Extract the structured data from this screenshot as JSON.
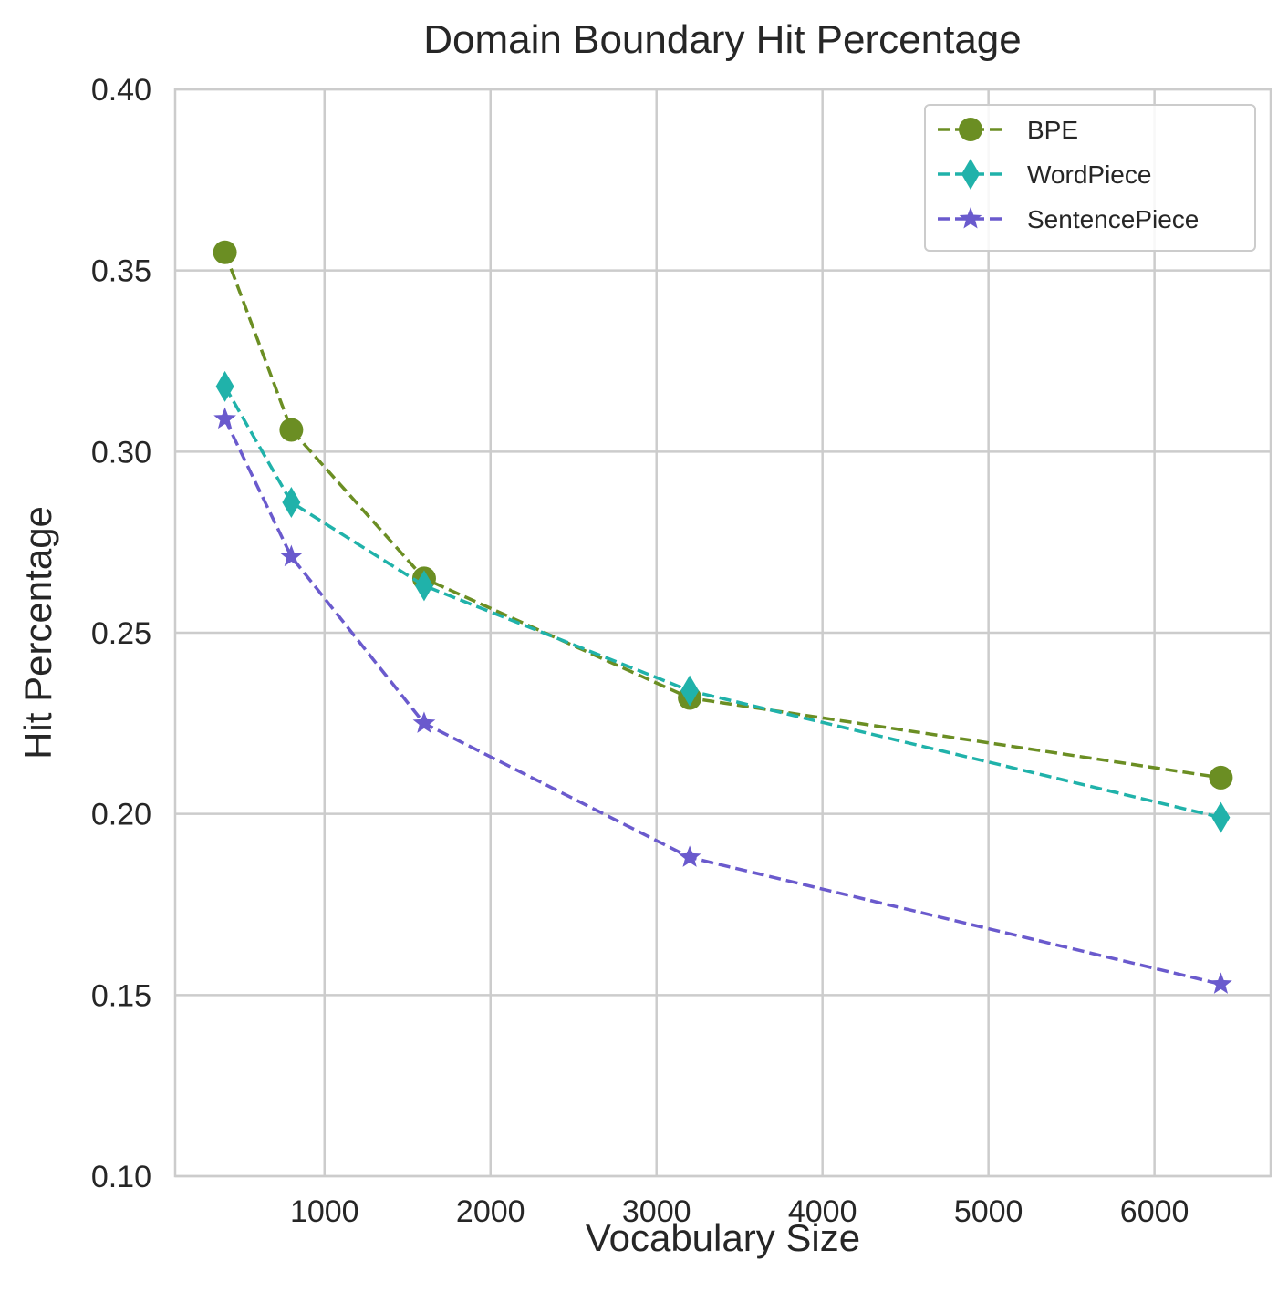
{
  "chart_data": {
    "type": "line",
    "title": "Domain Boundary Hit Percentage",
    "xlabel": "Vocabulary Size",
    "ylabel": "Hit Percentage",
    "xlim": [
      100,
      6700
    ],
    "ylim": [
      0.1,
      0.4
    ],
    "xticks": [
      1000,
      2000,
      3000,
      4000,
      5000,
      6000
    ],
    "xtick_labels": [
      "1000",
      "2000",
      "3000",
      "4000",
      "5000",
      "6000"
    ],
    "yticks": [
      0.1,
      0.15,
      0.2,
      0.25,
      0.3,
      0.35,
      0.4
    ],
    "ytick_labels": [
      "0.10",
      "0.15",
      "0.20",
      "0.25",
      "0.30",
      "0.35",
      "0.40"
    ],
    "grid": true,
    "legend_position": "top-right",
    "x": [
      400,
      800,
      1600,
      3200,
      6400
    ],
    "series": [
      {
        "name": "BPE",
        "color": "#6b8e23",
        "marker": "circle",
        "linestyle": "dashed",
        "values": [
          0.355,
          0.306,
          0.265,
          0.232,
          0.21
        ]
      },
      {
        "name": "WordPiece",
        "color": "#20b2aa",
        "marker": "diamond",
        "linestyle": "dashed",
        "values": [
          0.318,
          0.286,
          0.263,
          0.234,
          0.199
        ]
      },
      {
        "name": "SentencePiece",
        "color": "#6a5acd",
        "marker": "star",
        "linestyle": "dashed",
        "values": [
          0.309,
          0.271,
          0.225,
          0.188,
          0.153
        ]
      }
    ]
  }
}
